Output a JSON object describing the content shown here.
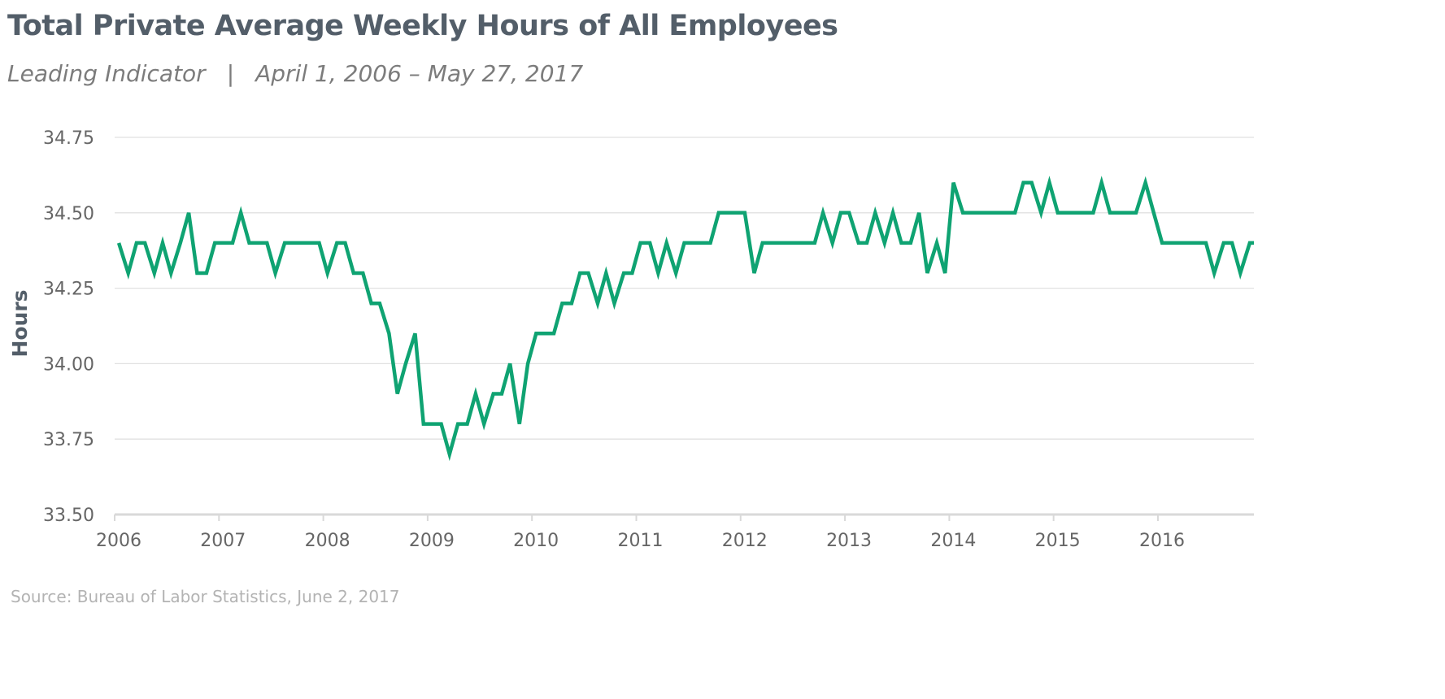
{
  "title": "Total Private Average Weekly Hours of All Employees",
  "subtitle": {
    "label": "Leading Indicator",
    "separator": "|",
    "date_range": "April 1, 2006 – May 27, 2017"
  },
  "source": "Source: Bureau of Labor Statistics, June 2, 2017",
  "colors": {
    "line": "#0fa372",
    "grid": "#e1e1e1",
    "axis": "#d9d9d9",
    "tick_text": "#666666",
    "ylabel": "#535e69"
  },
  "chart_data": {
    "type": "line",
    "title": "Total Private Average Weekly Hours of All Employees",
    "xlabel": "",
    "ylabel": "Hours",
    "xlim": [
      2006,
      2016.92
    ],
    "ylim": [
      33.5,
      34.75
    ],
    "yticks": [
      33.5,
      33.75,
      34.0,
      34.25,
      34.5,
      34.75
    ],
    "ytick_labels": [
      "33.50",
      "33.75",
      "34.00",
      "34.25",
      "34.50",
      "34.75"
    ],
    "xticks": [
      2006,
      2007,
      2008,
      2009,
      2010,
      2011,
      2012,
      2013,
      2014,
      2015,
      2016
    ],
    "xtick_labels": [
      "2006",
      "2007",
      "2008",
      "2009",
      "2010",
      "2011",
      "2012",
      "2013",
      "2014",
      "2015",
      "2016"
    ],
    "grid": true,
    "series": [
      {
        "x": [
          2006.04,
          2006.13,
          2006.21,
          2006.29,
          2006.38,
          2006.46,
          2006.54,
          2006.63,
          2006.71,
          2006.79,
          2006.88,
          2006.96,
          2007.04,
          2007.13,
          2007.21,
          2007.29,
          2007.38,
          2007.46,
          2007.54,
          2007.63,
          2007.71,
          2007.79,
          2007.88,
          2007.96,
          2008.04,
          2008.13,
          2008.21,
          2008.29,
          2008.38,
          2008.46,
          2008.54,
          2008.63,
          2008.71,
          2008.79,
          2008.88,
          2008.96,
          2009.04,
          2009.13,
          2009.21,
          2009.29,
          2009.38,
          2009.46,
          2009.54,
          2009.63,
          2009.71,
          2009.79,
          2009.88,
          2009.96,
          2010.04,
          2010.13,
          2010.21,
          2010.29,
          2010.38,
          2010.46,
          2010.54,
          2010.63,
          2010.71,
          2010.79,
          2010.88,
          2010.96,
          2011.04,
          2011.13,
          2011.21,
          2011.29,
          2011.38,
          2011.46,
          2011.54,
          2011.63,
          2011.71,
          2011.79,
          2011.88,
          2011.96,
          2012.04,
          2012.13,
          2012.21,
          2012.29,
          2012.38,
          2012.46,
          2012.54,
          2012.63,
          2012.71,
          2012.79,
          2012.88,
          2012.96,
          2013.04,
          2013.13,
          2013.21,
          2013.29,
          2013.38,
          2013.46,
          2013.54,
          2013.63,
          2013.71,
          2013.79,
          2013.88,
          2013.96,
          2014.04,
          2014.13,
          2014.21,
          2014.29,
          2014.38,
          2014.46,
          2014.54,
          2014.63,
          2014.71,
          2014.79,
          2014.88,
          2014.96,
          2015.04,
          2015.13,
          2015.21,
          2015.29,
          2015.38,
          2015.46,
          2015.54,
          2015.63,
          2015.71,
          2015.79,
          2015.88,
          2015.96,
          2016.04,
          2016.13,
          2016.21,
          2016.29,
          2016.38,
          2016.46,
          2016.54,
          2016.63,
          2016.71,
          2016.79,
          2016.88,
          2016.96
        ],
        "values": [
          34.4,
          34.3,
          34.4,
          34.4,
          34.3,
          34.4,
          34.3,
          34.4,
          34.5,
          34.3,
          34.3,
          34.4,
          34.4,
          34.4,
          34.5,
          34.4,
          34.4,
          34.4,
          34.3,
          34.4,
          34.4,
          34.4,
          34.4,
          34.4,
          34.3,
          34.4,
          34.4,
          34.3,
          34.3,
          34.2,
          34.2,
          34.1,
          33.9,
          34.0,
          34.1,
          33.8,
          33.8,
          33.8,
          33.7,
          33.8,
          33.8,
          33.9,
          33.8,
          33.9,
          33.9,
          34.0,
          33.8,
          34.0,
          34.1,
          34.1,
          34.1,
          34.2,
          34.2,
          34.3,
          34.3,
          34.2,
          34.3,
          34.2,
          34.3,
          34.3,
          34.4,
          34.4,
          34.3,
          34.4,
          34.3,
          34.4,
          34.4,
          34.4,
          34.4,
          34.5,
          34.5,
          34.5,
          34.5,
          34.3,
          34.4,
          34.4,
          34.4,
          34.4,
          34.4,
          34.4,
          34.4,
          34.5,
          34.4,
          34.5,
          34.5,
          34.4,
          34.4,
          34.5,
          34.4,
          34.5,
          34.4,
          34.4,
          34.5,
          34.3,
          34.4,
          34.3,
          34.6,
          34.5,
          34.5,
          34.5,
          34.5,
          34.5,
          34.5,
          34.5,
          34.6,
          34.6,
          34.5,
          34.6,
          34.5,
          34.5,
          34.5,
          34.5,
          34.5,
          34.6,
          34.5,
          34.5,
          34.5,
          34.5,
          34.6,
          34.5,
          34.4,
          34.4,
          34.4,
          34.4,
          34.4,
          34.4,
          34.3,
          34.4,
          34.4,
          34.3,
          34.4,
          34.4
        ]
      }
    ]
  }
}
